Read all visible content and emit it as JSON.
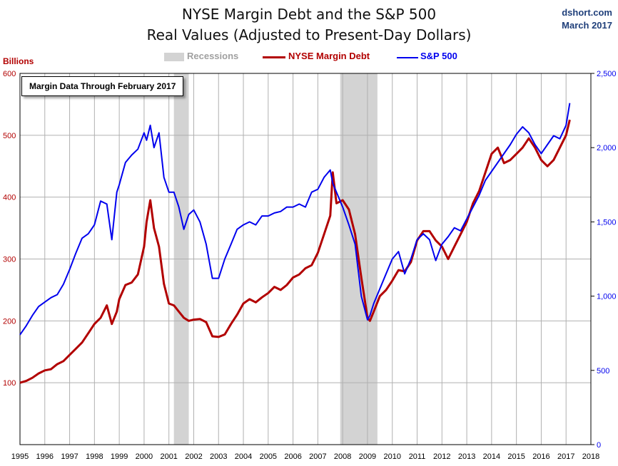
{
  "title_line1": "NYSE Margin Debt and the S&P 500",
  "title_line2": "Real Values (Adjusted to Present-Day Dollars)",
  "credit_site": "dshort.com",
  "credit_date": "March 2017",
  "annotation": "Margin Data Through February 2017",
  "colors": {
    "margin": "#b20000",
    "sp500": "#0000ee",
    "recession": "#d3d3d3",
    "grid": "#b0b0b0"
  },
  "chart_data": {
    "type": "line",
    "ylabel": "Billions",
    "legend": [
      {
        "label": "Recessions",
        "color": "#d3d3d3"
      },
      {
        "label": "NYSE Margin Debt",
        "color": "#b20000"
      },
      {
        "label": "S&P 500",
        "color": "#0000ee"
      }
    ],
    "legend_position": "top-center",
    "x_ticks": [
      "1995",
      "1996",
      "1997",
      "1998",
      "1999",
      "2000",
      "2001",
      "2002",
      "2003",
      "2004",
      "2005",
      "2006",
      "2007",
      "2008",
      "2009",
      "2010",
      "2011",
      "2012",
      "2013",
      "2014",
      "2015",
      "2016",
      "2017",
      "2018"
    ],
    "xlim": [
      1995,
      2018
    ],
    "y_left_ticks": [
      "100",
      "200",
      "300",
      "400",
      "500",
      "600"
    ],
    "y_left_lim": [
      0,
      600
    ],
    "y_right_ticks": [
      "0",
      "500",
      "1,000",
      "1,500",
      "2,000",
      "2,500"
    ],
    "y_right_lim": [
      0,
      2500
    ],
    "recessions": [
      [
        2001.2,
        2001.8
      ],
      [
        2007.9,
        2009.4
      ]
    ],
    "series": [
      {
        "name": "NYSE Margin Debt",
        "axis": "left",
        "x": [
          1995.0,
          1995.25,
          1995.5,
          1995.75,
          1996.0,
          1996.25,
          1996.5,
          1996.75,
          1997.0,
          1997.25,
          1997.5,
          1997.75,
          1998.0,
          1998.25,
          1998.5,
          1998.7,
          1998.9,
          1999.0,
          1999.25,
          1999.5,
          1999.75,
          2000.0,
          2000.1,
          2000.25,
          2000.4,
          2000.6,
          2000.8,
          2001.0,
          2001.2,
          2001.4,
          2001.6,
          2001.8,
          2002.0,
          2002.25,
          2002.5,
          2002.75,
          2003.0,
          2003.25,
          2003.5,
          2003.75,
          2004.0,
          2004.25,
          2004.5,
          2004.75,
          2005.0,
          2005.25,
          2005.5,
          2005.75,
          2006.0,
          2006.25,
          2006.5,
          2006.75,
          2007.0,
          2007.25,
          2007.5,
          2007.6,
          2007.75,
          2008.0,
          2008.25,
          2008.5,
          2008.75,
          2009.0,
          2009.1,
          2009.25,
          2009.5,
          2009.75,
          2010.0,
          2010.25,
          2010.5,
          2010.75,
          2011.0,
          2011.25,
          2011.5,
          2011.75,
          2012.0,
          2012.25,
          2012.5,
          2012.75,
          2013.0,
          2013.25,
          2013.5,
          2013.75,
          2014.0,
          2014.25,
          2014.5,
          2014.75,
          2015.0,
          2015.25,
          2015.5,
          2015.75,
          2016.0,
          2016.25,
          2016.5,
          2016.75,
          2017.0,
          2017.15
        ],
        "values": [
          100,
          103,
          108,
          115,
          120,
          122,
          130,
          135,
          145,
          155,
          165,
          180,
          195,
          205,
          225,
          195,
          215,
          235,
          258,
          262,
          275,
          320,
          360,
          395,
          350,
          320,
          260,
          228,
          225,
          215,
          205,
          200,
          202,
          203,
          198,
          175,
          174,
          178,
          195,
          210,
          228,
          235,
          230,
          238,
          245,
          255,
          250,
          258,
          270,
          275,
          285,
          290,
          310,
          340,
          370,
          440,
          390,
          395,
          380,
          340,
          270,
          205,
          200,
          215,
          240,
          250,
          265,
          282,
          280,
          295,
          330,
          345,
          345,
          330,
          320,
          300,
          320,
          340,
          360,
          390,
          410,
          440,
          470,
          480,
          455,
          460,
          470,
          480,
          495,
          480,
          460,
          450,
          460,
          480,
          500,
          525
        ]
      },
      {
        "name": "S&P 500",
        "axis": "right",
        "x": [
          1995.0,
          1995.25,
          1995.5,
          1995.75,
          1996.0,
          1996.25,
          1996.5,
          1996.75,
          1997.0,
          1997.25,
          1997.5,
          1997.75,
          1998.0,
          1998.25,
          1998.5,
          1998.7,
          1998.9,
          1999.0,
          1999.25,
          1999.5,
          1999.75,
          2000.0,
          2000.1,
          2000.25,
          2000.4,
          2000.6,
          2000.8,
          2001.0,
          2001.2,
          2001.4,
          2001.6,
          2001.8,
          2002.0,
          2002.25,
          2002.5,
          2002.75,
          2003.0,
          2003.25,
          2003.5,
          2003.75,
          2004.0,
          2004.25,
          2004.5,
          2004.75,
          2005.0,
          2005.25,
          2005.5,
          2005.75,
          2006.0,
          2006.25,
          2006.5,
          2006.75,
          2007.0,
          2007.25,
          2007.5,
          2007.6,
          2007.75,
          2008.0,
          2008.25,
          2008.5,
          2008.75,
          2009.0,
          2009.1,
          2009.25,
          2009.5,
          2009.75,
          2010.0,
          2010.25,
          2010.5,
          2010.75,
          2011.0,
          2011.25,
          2011.5,
          2011.75,
          2012.0,
          2012.25,
          2012.5,
          2012.75,
          2013.0,
          2013.25,
          2013.5,
          2013.75,
          2014.0,
          2014.25,
          2014.5,
          2014.75,
          2015.0,
          2015.25,
          2015.5,
          2015.75,
          2016.0,
          2016.25,
          2016.5,
          2016.75,
          2017.0,
          2017.15
        ],
        "values": [
          740,
          800,
          870,
          930,
          960,
          990,
          1010,
          1080,
          1180,
          1290,
          1390,
          1420,
          1480,
          1640,
          1620,
          1380,
          1700,
          1750,
          1900,
          1950,
          1990,
          2100,
          2050,
          2150,
          2000,
          2100,
          1800,
          1700,
          1700,
          1600,
          1450,
          1550,
          1580,
          1500,
          1350,
          1120,
          1120,
          1250,
          1350,
          1450,
          1480,
          1500,
          1480,
          1540,
          1540,
          1560,
          1570,
          1600,
          1600,
          1620,
          1600,
          1700,
          1720,
          1800,
          1850,
          1760,
          1700,
          1600,
          1480,
          1350,
          1000,
          840,
          870,
          950,
          1050,
          1150,
          1250,
          1300,
          1150,
          1250,
          1380,
          1420,
          1380,
          1240,
          1350,
          1400,
          1460,
          1440,
          1520,
          1600,
          1680,
          1780,
          1840,
          1900,
          1960,
          2020,
          2090,
          2140,
          2100,
          2020,
          1960,
          2020,
          2080,
          2060,
          2150,
          2300
        ]
      }
    ]
  }
}
